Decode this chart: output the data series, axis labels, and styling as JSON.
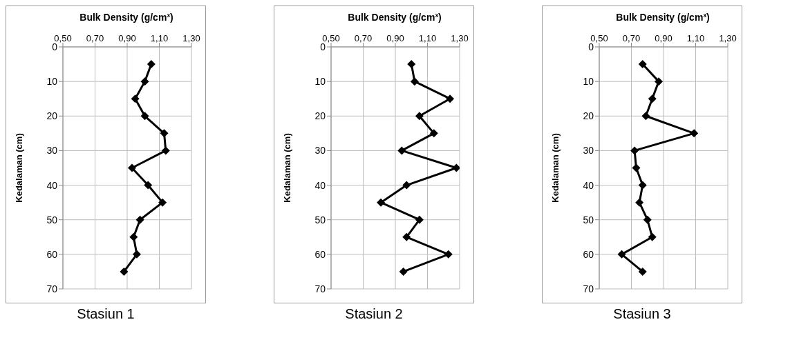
{
  "chart_data": [
    {
      "type": "line",
      "title": "Stasiun 1",
      "xlabel": "Bulk Density (g/cm³)",
      "ylabel": "Kedalaman (cm)",
      "xlim": [
        0.5,
        1.3
      ],
      "xticks": [
        {
          "value": 0.5,
          "label": "0,50"
        },
        {
          "value": 0.7,
          "label": "0,70"
        },
        {
          "value": 0.9,
          "label": "0,90"
        },
        {
          "value": 1.1,
          "label": "1,10"
        },
        {
          "value": 1.3,
          "label": "1,30"
        }
      ],
      "ylim": [
        70,
        0
      ],
      "yticks": [
        0,
        10,
        20,
        30,
        40,
        50,
        60,
        70
      ],
      "grid": true,
      "marker": "diamond",
      "line_style": "solid",
      "series": [
        {
          "color": "#000000",
          "x": [
            1.05,
            1.01,
            0.95,
            1.01,
            1.13,
            1.14,
            0.93,
            1.03,
            1.12,
            0.98,
            0.94,
            0.96,
            0.88
          ],
          "values": [
            5,
            10,
            15,
            20,
            25,
            30,
            35,
            40,
            45,
            50,
            55,
            60,
            65
          ]
        }
      ]
    },
    {
      "type": "line",
      "title": "Stasiun 2",
      "xlabel": "Bulk Density (g/cm³)",
      "ylabel": "Kedalaman (cm)",
      "xlim": [
        0.5,
        1.3
      ],
      "xticks": [
        {
          "value": 0.5,
          "label": "0,50"
        },
        {
          "value": 0.7,
          "label": "0,70"
        },
        {
          "value": 0.9,
          "label": "0,90"
        },
        {
          "value": 1.1,
          "label": "1,10"
        },
        {
          "value": 1.3,
          "label": "1,30"
        }
      ],
      "ylim": [
        70,
        0
      ],
      "yticks": [
        0,
        10,
        20,
        30,
        40,
        50,
        60,
        70
      ],
      "grid": true,
      "marker": "diamond",
      "line_style": "solid",
      "series": [
        {
          "color": "#000000",
          "x": [
            1.0,
            1.02,
            1.24,
            1.05,
            1.14,
            0.94,
            1.28,
            0.97,
            0.81,
            1.05,
            0.97,
            1.23,
            0.95
          ],
          "values": [
            5,
            10,
            15,
            20,
            25,
            30,
            35,
            40,
            45,
            50,
            55,
            60,
            65
          ]
        }
      ]
    },
    {
      "type": "line",
      "title": "Stasiun 3",
      "xlabel": "Bulk Density (g/cm³)",
      "ylabel": "Kedalaman (cm)",
      "xlim": [
        0.5,
        1.3
      ],
      "xticks": [
        {
          "value": 0.5,
          "label": "0,50"
        },
        {
          "value": 0.7,
          "label": "0,70"
        },
        {
          "value": 0.9,
          "label": "0,90"
        },
        {
          "value": 1.1,
          "label": "1,10"
        },
        {
          "value": 1.3,
          "label": "1,30"
        }
      ],
      "ylim": [
        70,
        0
      ],
      "yticks": [
        0,
        10,
        20,
        30,
        40,
        50,
        60,
        70
      ],
      "grid": true,
      "marker": "diamond",
      "line_style": "solid",
      "series": [
        {
          "color": "#000000",
          "x": [
            0.77,
            0.87,
            0.83,
            0.79,
            1.09,
            0.72,
            0.73,
            0.77,
            0.75,
            0.8,
            0.83,
            0.64,
            0.77
          ],
          "values": [
            5,
            10,
            15,
            20,
            25,
            30,
            35,
            40,
            45,
            50,
            55,
            60,
            65
          ]
        }
      ]
    }
  ]
}
